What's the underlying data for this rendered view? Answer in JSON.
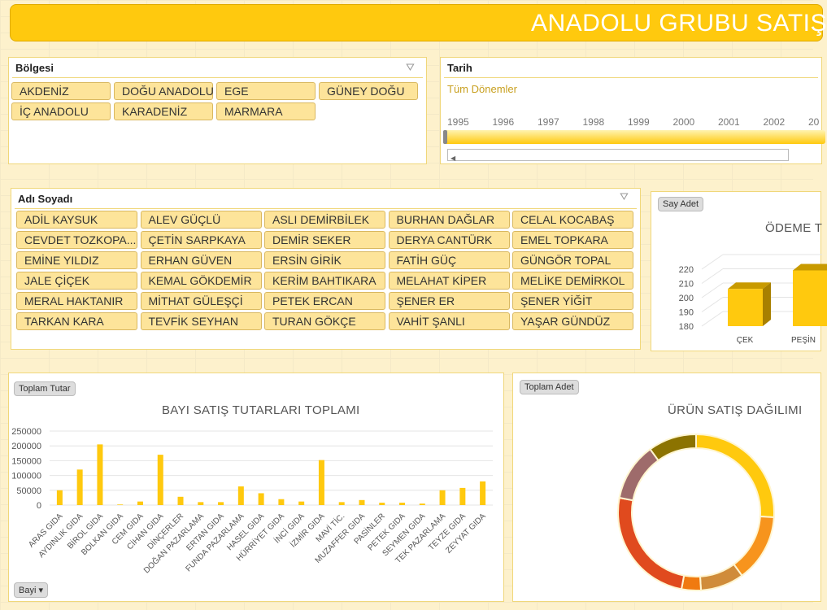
{
  "header": {
    "title": "ANADOLU GRUBU SATIŞ"
  },
  "region_slicer": {
    "title": "Bölgesi",
    "items": [
      "AKDENİZ",
      "DOĞU ANADOLU",
      "EGE",
      "GÜNEY DOĞU",
      "İÇ ANADOLU",
      "KARADENİZ",
      "MARMARA"
    ]
  },
  "date_slicer": {
    "title": "Tarih",
    "period": "Tüm Dönemler",
    "years": [
      "1995",
      "1996",
      "1997",
      "1998",
      "1999",
      "2000",
      "2001",
      "2002",
      "20"
    ]
  },
  "name_slicer": {
    "title": "Adı Soyadı",
    "items": [
      "ADİL KAYSUK",
      "ALEV GÜÇLÜ",
      "ASLI DEMİRBİLEK",
      "BURHAN DAĞLAR",
      "CELAL KOCABAŞ",
      "CEVDET TOZKOPA...",
      "ÇETİN SARPKAYA",
      "DEMİR SEKER",
      "DERYA CANTÜRK",
      "EMEL TOPKARA",
      "EMİNE YILDIZ",
      "ERHAN GÜVEN",
      "ERSİN GİRİK",
      "FATİH GÜÇ",
      "GÜNGÖR TOPAL",
      "JALE ÇİÇEK",
      "KEMAL GÖKDEMİR",
      "KERİM BAHTIKARA",
      "MELAHAT KİPER",
      "MELİKE DEMİRKOL",
      "MERAL HAKTANIR",
      "MİTHAT GÜLEŞÇİ",
      "PETEK ERCAN",
      "ŞENER ER",
      "ŞENER YİĞİT",
      "TARKAN KARA",
      "TEVFİK SEYHAN",
      "TURAN GÖKÇE",
      "VAHİT ŞANLI",
      "YAŞAR GÜNDÜZ"
    ]
  },
  "colors": {
    "accent": "#ffc90e",
    "bar": "#ffc90e"
  },
  "chart_data": [
    {
      "type": "bar",
      "title": "BAYI SATIŞ  TUTARLARI TOPLAMI",
      "value_field": "Toplam Tutar",
      "filter_button": "Bayi",
      "ylim": [
        0,
        250000
      ],
      "yticks": [
        "250000",
        "200000",
        "150000",
        "100000",
        "50000",
        "0"
      ],
      "grid": true,
      "categories": [
        "ARAS GIDA",
        "AYDINLIK GIDA",
        "BİROL GIDA",
        "BOLKAN GIDA",
        "CEM GIDA",
        "CİHAN GIDA",
        "DİNÇERLER",
        "DOĞAN PAZARLAMA",
        "ERTAN GIDA",
        "FUNDA PAZARLAMA",
        "HASEL GIDA",
        "HÜRRİYET GIDA",
        "İNCİ GIDA",
        "İZMİR GIDA",
        "MAVİ TİC.",
        "MUZAFFER GIDA",
        "PASİNLER",
        "PETEK GIDA",
        "SEYMEN GIDA",
        "TEK PAZARLAMA",
        "TEYZE GIDA",
        "ZEYYAT GIDA"
      ],
      "values": [
        50000,
        120000,
        205000,
        2000,
        12000,
        170000,
        28000,
        10000,
        10000,
        63000,
        40000,
        20000,
        12000,
        152000,
        10000,
        17000,
        8000,
        8000,
        5000,
        50000,
        58000,
        80000
      ]
    },
    {
      "type": "bar",
      "title": "ÖDEME T",
      "value_field": "Say Adet",
      "ylim": [
        180,
        220
      ],
      "yticks": [
        "220",
        "210",
        "200",
        "190",
        "180"
      ],
      "grid": true,
      "categories": [
        "ÇEK",
        "PEŞİN"
      ],
      "values": [
        205,
        218
      ]
    },
    {
      "type": "pie",
      "title": "ÜRÜN SATIŞ DAĞILIMI",
      "value_field": "Toplam Adet",
      "donut": true,
      "values": [
        26,
        14,
        9,
        4,
        25,
        12,
        10
      ],
      "colors": [
        "#ffc90e",
        "#f7941d",
        "#d08c3a",
        "#f07a10",
        "#e04a1e",
        "#9e6b6b",
        "#8c7300"
      ]
    }
  ]
}
